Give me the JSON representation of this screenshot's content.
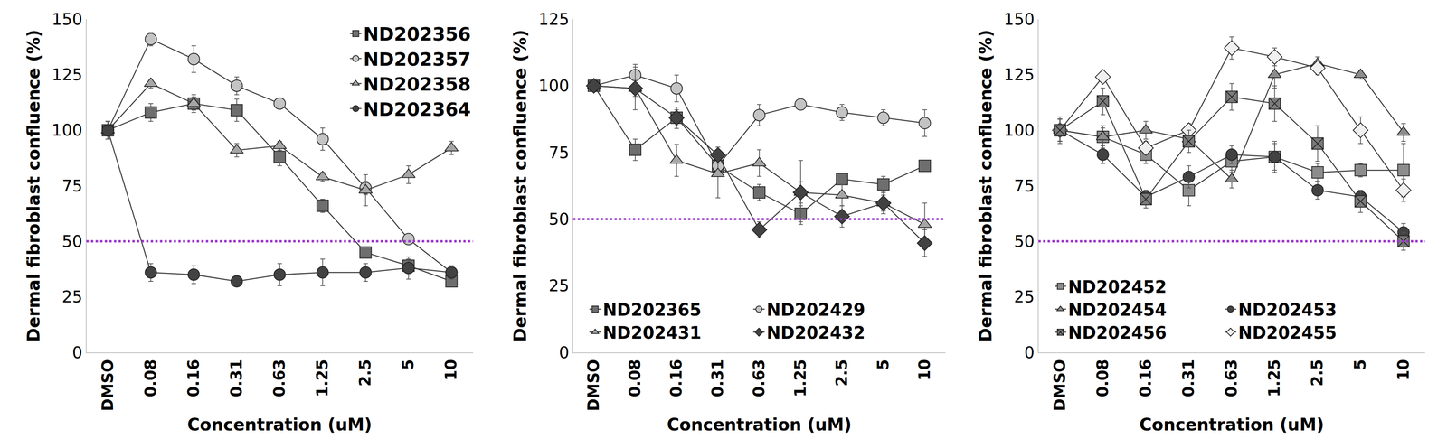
{
  "chart_data": [
    {
      "type": "line",
      "y_label": "Dermal fibroblast confluence (%)",
      "x_label": "Concentration (uM)",
      "categories": [
        "DMSO",
        "0.08",
        "0.16",
        "0.31",
        "0.63",
        "1.25",
        "2.5",
        "5",
        "10"
      ],
      "ylim": [
        0,
        150
      ],
      "yticks": [
        0,
        25,
        50,
        75,
        100,
        125,
        150
      ],
      "threshold": 50,
      "legend": "upper right",
      "series": [
        {
          "name": "ND202356",
          "color": "#6e6e6e",
          "marker": "square",
          "values": [
            100,
            108,
            112,
            109,
            88,
            66,
            45,
            39,
            32
          ],
          "errors": [
            4,
            4,
            3,
            5,
            4,
            3,
            2,
            3,
            2
          ]
        },
        {
          "name": "ND202357",
          "color": "#c4c4c4",
          "marker": "circle",
          "values": [
            100,
            141,
            132,
            120,
            112,
            96,
            74,
            51,
            36
          ],
          "errors": [
            4,
            3,
            6,
            4,
            2,
            5,
            3,
            2,
            2
          ]
        },
        {
          "name": "ND202358",
          "color": "#a6a6a6",
          "marker": "triangle",
          "values": [
            100,
            121,
            112,
            91,
            93,
            79,
            73,
            80,
            92
          ],
          "errors": [
            4,
            2,
            4,
            3,
            2,
            2,
            7,
            4,
            3
          ]
        },
        {
          "name": "ND202364",
          "color": "#424242",
          "marker": "circle",
          "values": [
            100,
            36,
            35,
            32,
            35,
            36,
            36,
            38,
            36
          ],
          "errors": [
            4,
            4,
            4,
            2,
            5,
            6,
            4,
            5,
            3
          ]
        }
      ]
    },
    {
      "type": "line",
      "y_label": "Dermal fibroblast confluence (%)",
      "x_label": "Concentration (uM)",
      "categories": [
        "DMSO",
        "0.08",
        "0.16",
        "0.31",
        "0.63",
        "1.25",
        "2.5",
        "5",
        "10"
      ],
      "ylim": [
        0,
        125
      ],
      "yticks": [
        0,
        25,
        50,
        75,
        100,
        125
      ],
      "threshold": 50,
      "legend": "lower left",
      "series": [
        {
          "name": "ND202365",
          "color": "#6e6e6e",
          "marker": "square",
          "values": [
            100,
            76,
            88,
            70,
            60,
            52,
            65,
            63,
            70
          ],
          "errors": [
            2,
            4,
            3,
            3,
            3,
            3,
            2,
            3,
            2
          ]
        },
        {
          "name": "ND202429",
          "color": "#c4c4c4",
          "marker": "circle",
          "values": [
            100,
            104,
            99,
            70,
            89,
            93,
            90,
            88,
            86
          ],
          "errors": [
            2,
            4,
            5,
            3,
            4,
            2,
            3,
            3,
            5
          ]
        },
        {
          "name": "ND202431",
          "color": "#a6a6a6",
          "marker": "triangle",
          "values": [
            100,
            99,
            72,
            67,
            71,
            60,
            59,
            56,
            48
          ],
          "errors": [
            2,
            8,
            6,
            9,
            5,
            12,
            4,
            3,
            8
          ]
        },
        {
          "name": "ND202432",
          "color": "#424242",
          "marker": "diamond",
          "values": [
            100,
            99,
            88,
            74,
            46,
            60,
            51,
            56,
            41
          ],
          "errors": [
            2,
            3,
            4,
            3,
            3,
            4,
            4,
            4,
            5
          ]
        }
      ]
    },
    {
      "type": "line",
      "y_label": "Dermal fibroblast confluence (%)",
      "x_label": "Concentration (uM)",
      "categories": [
        "DMSO",
        "0.08",
        "0.16",
        "0.31",
        "0.63",
        "1.25",
        "2.5",
        "5",
        "10"
      ],
      "ylim": [
        0,
        150
      ],
      "yticks": [
        0,
        25,
        50,
        75,
        100,
        125,
        150
      ],
      "threshold": 50,
      "legend": "lower left",
      "series": [
        {
          "name": "ND202452",
          "color": "#8c8c8c",
          "marker": "square",
          "values": [
            100,
            97,
            89,
            73,
            86,
            88,
            81,
            82,
            82
          ],
          "errors": [
            6,
            5,
            4,
            7,
            5,
            6,
            4,
            3,
            12
          ]
        },
        {
          "name": "ND202453",
          "color": "#424242",
          "marker": "circle",
          "values": [
            100,
            89,
            70,
            79,
            89,
            88,
            73,
            70,
            54
          ],
          "errors": [
            5,
            4,
            3,
            5,
            4,
            7,
            4,
            3,
            4
          ]
        },
        {
          "name": "ND202454",
          "color": "#8c8c8c",
          "marker": "triangle",
          "values": [
            100,
            97,
            100,
            96,
            78,
            125,
            130,
            125,
            99
          ],
          "errors": [
            5,
            4,
            4,
            3,
            4,
            6,
            3,
            2,
            4
          ]
        },
        {
          "name": "ND202455",
          "color": "#f0f0f0",
          "marker": "diamond",
          "values": [
            100,
            124,
            92,
            100,
            137,
            133,
            128,
            100,
            73
          ],
          "errors": [
            5,
            2,
            3,
            3,
            5,
            4,
            3,
            6,
            5
          ]
        },
        {
          "name": "ND202456",
          "color": "#7a7a7a",
          "marker": "square-x",
          "values": [
            100,
            113,
            69,
            95,
            115,
            112,
            94,
            68,
            50
          ],
          "errors": [
            5,
            6,
            4,
            5,
            6,
            8,
            8,
            5,
            4
          ]
        }
      ]
    }
  ]
}
